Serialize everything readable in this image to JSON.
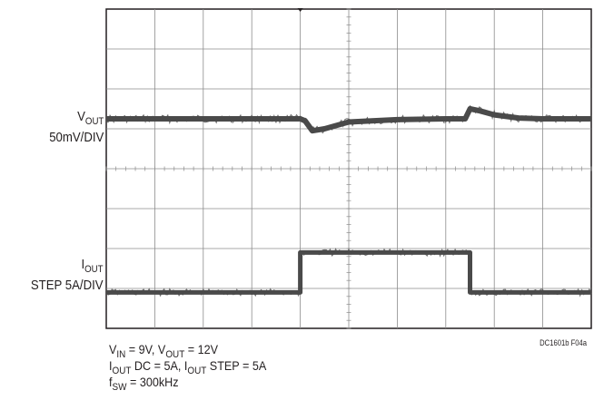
{
  "chart_data": {
    "type": "line",
    "grid": true,
    "x_divisions": 10,
    "y_divisions": 8,
    "trace_color": "#4a4a4a",
    "series": [
      {
        "name_main": "V",
        "name_sub": "OUT",
        "scale": "50mV/DIV",
        "x": [
          0,
          4.0,
          4.1,
          4.25,
          4.5,
          5.0,
          6.0,
          7.0,
          7.4,
          7.5,
          7.7,
          8.0,
          8.5,
          9.0,
          10
        ],
        "y_div": [
          0,
          0,
          -0.05,
          -0.3,
          -0.25,
          -0.08,
          -0.02,
          0,
          0,
          0.25,
          0.2,
          0.1,
          0.02,
          0,
          0
        ]
      },
      {
        "name_main": "I",
        "name_sub": "OUT",
        "scale": "STEP 5A/DIV",
        "x": [
          0,
          4.0,
          4.0,
          7.5,
          7.5,
          10
        ],
        "y_div": [
          0,
          0,
          1,
          1,
          0,
          0
        ]
      }
    ]
  },
  "conditions": {
    "line1": {
      "a": "V",
      "a_sub": "IN",
      "b": " = 9V, V",
      "b_sub": "OUT",
      "c": " = 12V"
    },
    "line2": {
      "a": "I",
      "a_sub": "OUT",
      "b": " DC = 5A, I",
      "b_sub": "OUT",
      "c": " STEP = 5A"
    },
    "line3": {
      "a": "f",
      "a_sub": "SW",
      "b": " = 300kHz"
    }
  },
  "figure_code": "DC1601b F04a"
}
